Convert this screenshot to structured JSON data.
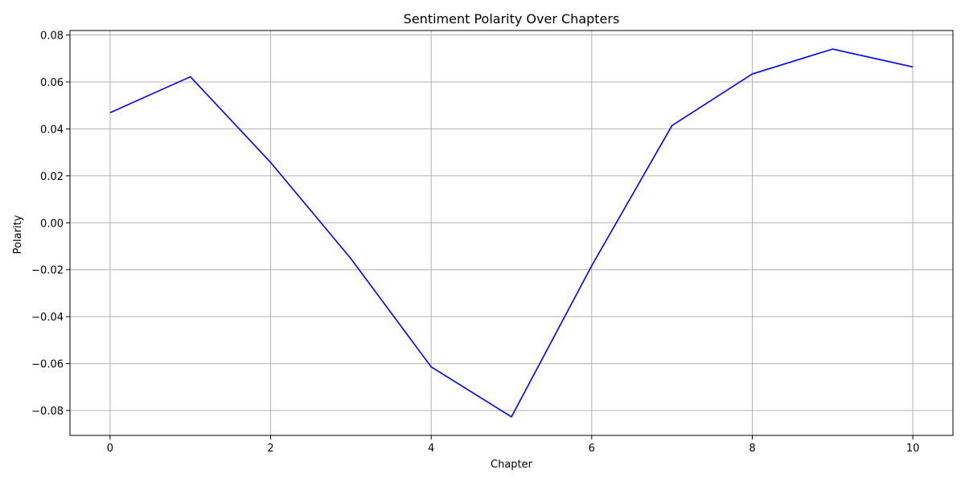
{
  "chart_data": {
    "type": "line",
    "title": "Sentiment Polarity Over Chapters",
    "xlabel": "Chapter",
    "ylabel": "Polarity",
    "x": [
      0,
      1,
      2,
      3,
      4,
      5,
      6,
      7,
      8,
      9,
      10
    ],
    "series": [
      {
        "values": [
          0.0469,
          0.0622,
          0.0257,
          -0.0153,
          -0.0614,
          -0.0827,
          -0.0183,
          0.0414,
          0.0634,
          0.074,
          0.0664
        ],
        "color": "#0000ff"
      }
    ],
    "xticks": [
      0,
      2,
      4,
      6,
      8,
      10
    ],
    "xtick_labels": [
      "0",
      "2",
      "4",
      "6",
      "8",
      "10"
    ],
    "yticks": [
      -0.08,
      -0.06,
      -0.04,
      -0.02,
      0.0,
      0.02,
      0.04,
      0.06,
      0.08
    ],
    "ytick_labels": [
      "−0.08",
      "−0.06",
      "−0.04",
      "−0.02",
      "0.00",
      "0.02",
      "0.04",
      "0.06",
      "0.08"
    ],
    "xlim": [
      -0.5,
      10.5
    ],
    "ylim": [
      -0.0906,
      0.0819
    ],
    "grid": true,
    "legend": "none"
  }
}
